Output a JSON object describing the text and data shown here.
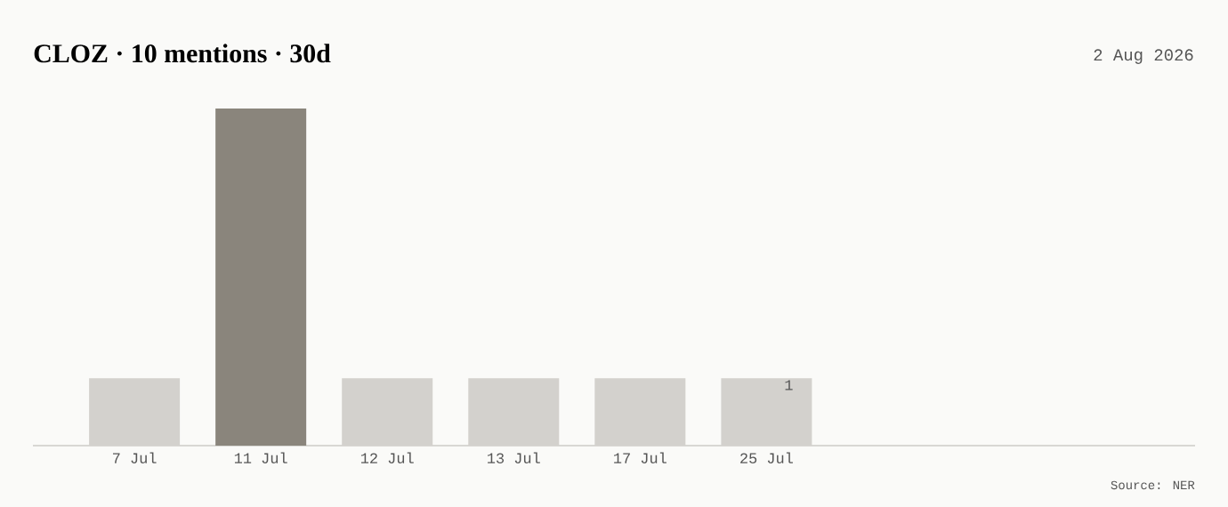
{
  "chart_data": {
    "type": "bar",
    "title": "CLOZ · 10 mentions · 30d",
    "categories": [
      "7 Jul",
      "11 Jul",
      "12 Jul",
      "13 Jul",
      "17 Jul",
      "25 Jul"
    ],
    "values": [
      1,
      5,
      1,
      1,
      1,
      1
    ],
    "colors": [
      "#d3d1cd",
      "#8a857c",
      "#d3d1cd",
      "#d3d1cd",
      "#d3d1cd",
      "#d3d1cd"
    ],
    "value_labels": [
      null,
      null,
      null,
      null,
      null,
      "1"
    ],
    "annotations": [
      "2 Aug 2026",
      "Source: NER"
    ]
  }
}
